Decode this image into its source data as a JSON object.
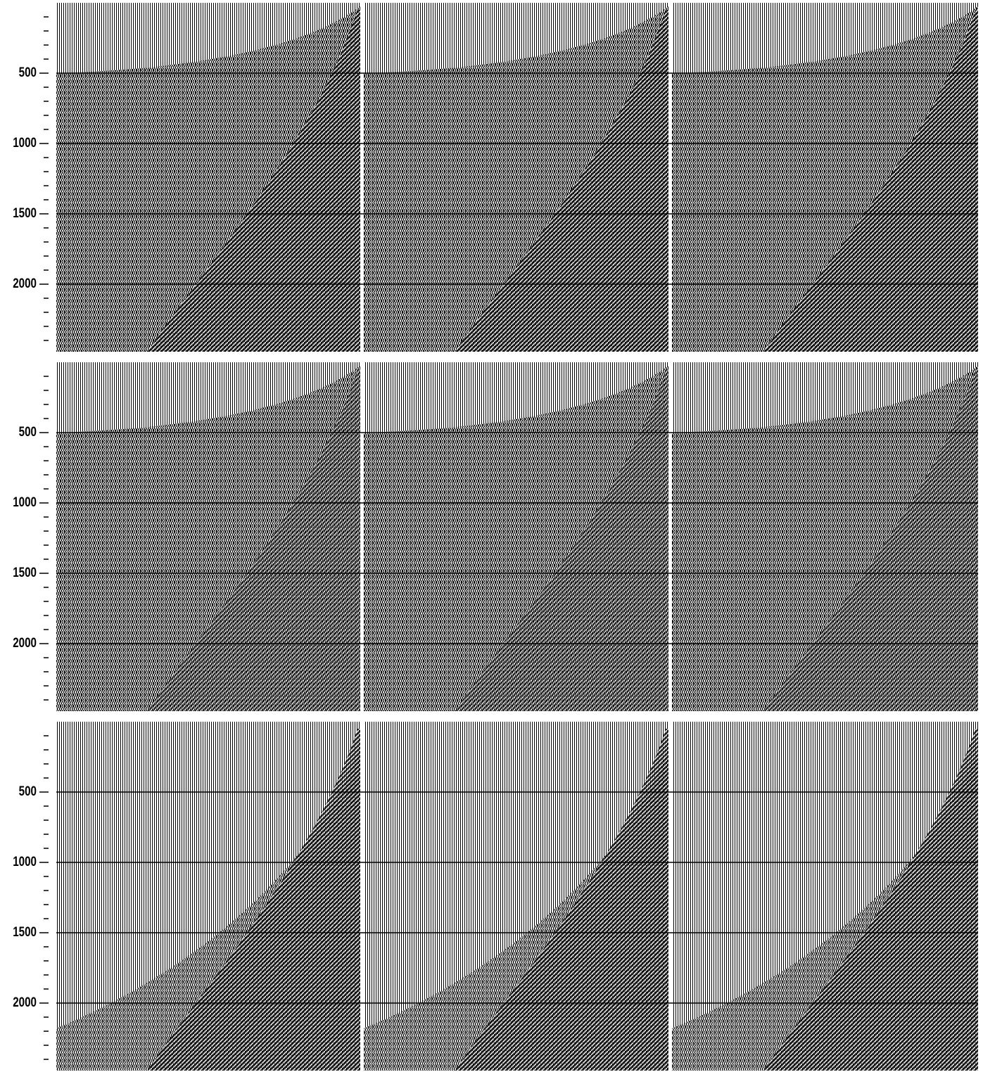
{
  "chart_data": [
    {
      "type": "seismic",
      "ylim": [
        0,
        2480
      ],
      "yticks": [
        500,
        1000,
        1500,
        2000
      ],
      "minor_yticks": [
        100,
        200,
        300,
        400,
        600,
        700,
        800,
        900,
        1100,
        1200,
        1300,
        1400,
        1600,
        1700,
        1800,
        1900,
        2100,
        2200,
        2300,
        2400
      ],
      "grid": true,
      "color": "#000000"
    },
    {
      "type": "seismic",
      "ylim": [
        0,
        2480
      ],
      "yticks": [
        500,
        1000,
        1500,
        2000
      ],
      "minor_yticks": [
        100,
        200,
        300,
        400,
        600,
        700,
        800,
        900,
        1100,
        1200,
        1300,
        1400,
        1600,
        1700,
        1800,
        1900,
        2100,
        2200,
        2300,
        2400
      ],
      "grid": true,
      "color": "#000000"
    },
    {
      "type": "seismic",
      "ylim": [
        0,
        2480
      ],
      "yticks": [
        500,
        1000,
        1500,
        2000
      ],
      "minor_yticks": [
        100,
        200,
        300,
        400,
        600,
        700,
        800,
        900,
        1100,
        1200,
        1300,
        1400,
        1600,
        1700,
        1800,
        1900,
        2100,
        2200,
        2300,
        2400
      ],
      "grid": true,
      "color": "#000000"
    }
  ]
}
